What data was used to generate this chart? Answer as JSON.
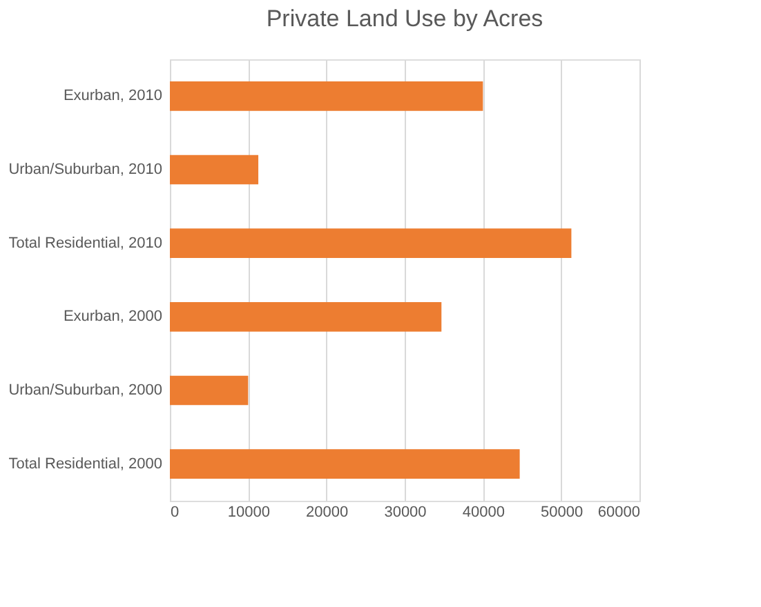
{
  "chart_data": {
    "type": "bar",
    "orientation": "horizontal",
    "title": "Private Land Use by Acres",
    "categories": [
      "Exurban, 2010",
      "Urban/Suburban, 2010",
      "Total Residential, 2010",
      "Exurban, 2000",
      "Urban/Suburban, 2000",
      "Total Residential, 2000"
    ],
    "values": [
      40000,
      11300,
      51300,
      34700,
      10000,
      44700
    ],
    "color": "#ed7d31",
    "xlim": [
      0,
      60000
    ],
    "xticks": [
      0,
      10000,
      20000,
      30000,
      40000,
      50000,
      60000
    ],
    "grid": "x"
  }
}
